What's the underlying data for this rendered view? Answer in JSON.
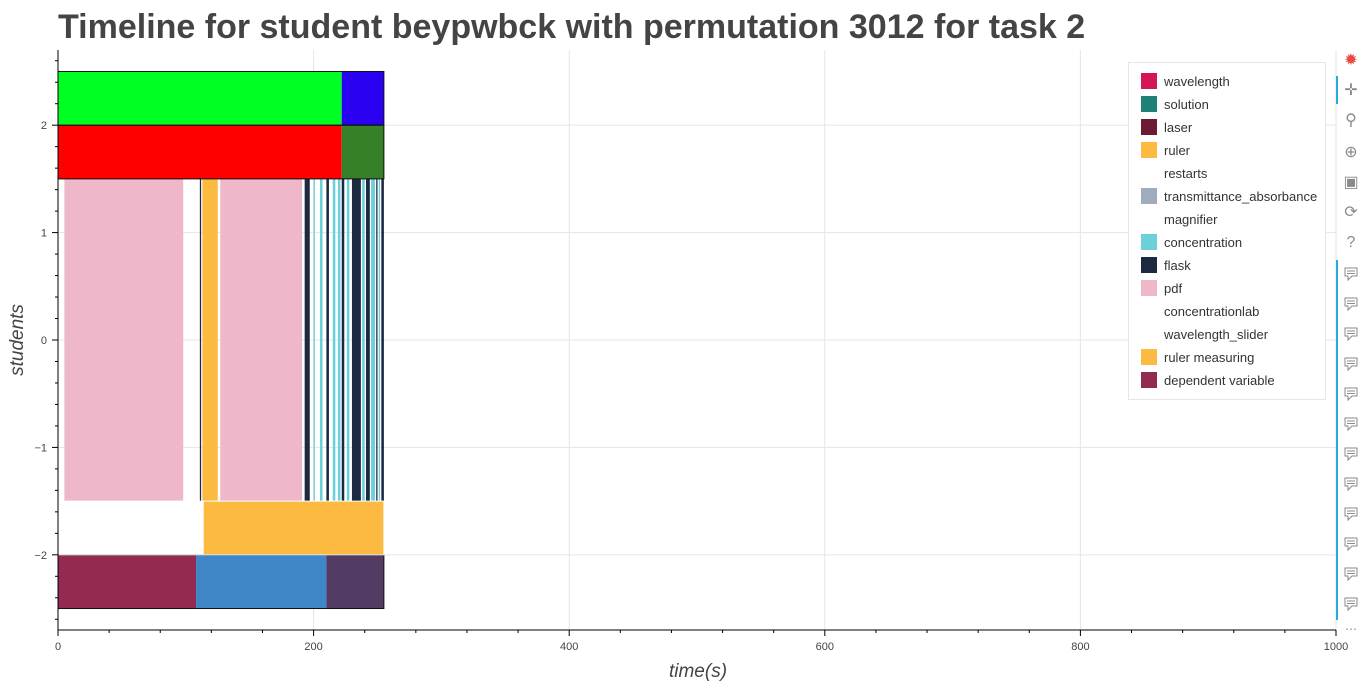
{
  "chart_data": {
    "type": "bar",
    "orientation": "horizontal-stacked-timeline",
    "title": "Timeline for student beypwbck with permutation 3012 for task 2",
    "xlabel": "time(s)",
    "ylabel": "students",
    "xlim": [
      0,
      1000
    ],
    "ylim": [
      -2.7,
      2.7
    ],
    "x_ticks": [
      0,
      200,
      400,
      600,
      800,
      1000
    ],
    "y_ticks": [
      2,
      1,
      0,
      -1,
      -2
    ],
    "y_tick_labels": [
      "2",
      "1",
      "0",
      "−1",
      "−2"
    ],
    "grid": true,
    "legend_position": "top-right",
    "segments": [
      {
        "y0": 2.0,
        "y1": 2.5,
        "x0": 0,
        "x1": 222,
        "color": "#00ff22"
      },
      {
        "y0": 2.0,
        "y1": 2.5,
        "x0": 222,
        "x1": 255,
        "color": "#2a00f0"
      },
      {
        "y0": 1.5,
        "y1": 2.0,
        "x0": 0,
        "x1": 222,
        "color": "#ff0000"
      },
      {
        "y0": 1.5,
        "y1": 2.0,
        "x0": 222,
        "x1": 255,
        "color": "#368029"
      },
      {
        "y0": -1.5,
        "y1": 1.5,
        "x0": 5,
        "x1": 98,
        "color": "#eeb8ca"
      },
      {
        "y0": -1.5,
        "y1": 1.5,
        "x0": 111,
        "x1": 112,
        "color": "#1b2a40"
      },
      {
        "y0": -1.5,
        "y1": 1.5,
        "x0": 113,
        "x1": 125,
        "color": "#fdba40"
      },
      {
        "y0": -1.5,
        "y1": 1.5,
        "x0": 127,
        "x1": 191,
        "color": "#eeb8ca"
      },
      {
        "y0": -1.5,
        "y1": 1.5,
        "x0": 193,
        "x1": 197,
        "color": "#1b2a40"
      },
      {
        "y0": -1.5,
        "y1": 1.5,
        "x0": 200,
        "x1": 201,
        "color": "#6ccfda"
      },
      {
        "y0": -1.5,
        "y1": 1.5,
        "x0": 205,
        "x1": 207,
        "color": "#6ccfda"
      },
      {
        "y0": -1.5,
        "y1": 1.5,
        "x0": 210,
        "x1": 212,
        "color": "#1b2a40"
      },
      {
        "y0": -1.5,
        "y1": 1.5,
        "x0": 215,
        "x1": 217,
        "color": "#6ccfda"
      },
      {
        "y0": -1.5,
        "y1": 1.5,
        "x0": 219,
        "x1": 221,
        "color": "#6ccfda"
      },
      {
        "y0": -1.5,
        "y1": 1.5,
        "x0": 222,
        "x1": 224,
        "color": "#1b2a40"
      },
      {
        "y0": -1.5,
        "y1": 1.5,
        "x0": 226,
        "x1": 228,
        "color": "#6ccfda"
      },
      {
        "y0": -1.5,
        "y1": 1.5,
        "x0": 230,
        "x1": 237,
        "color": "#1b2a40"
      },
      {
        "y0": -1.5,
        "y1": 1.5,
        "x0": 238,
        "x1": 240,
        "color": "#6ccfda"
      },
      {
        "y0": -1.5,
        "y1": 1.5,
        "x0": 241,
        "x1": 244,
        "color": "#1b2a40"
      },
      {
        "y0": -1.5,
        "y1": 1.5,
        "x0": 245,
        "x1": 248,
        "color": "#6ccfda"
      },
      {
        "y0": -1.5,
        "y1": 1.5,
        "x0": 249,
        "x1": 250,
        "color": "#1b2a40"
      },
      {
        "y0": -1.5,
        "y1": 1.5,
        "x0": 251,
        "x1": 252,
        "color": "#6ccfda"
      },
      {
        "y0": -1.5,
        "y1": 1.5,
        "x0": 253,
        "x1": 255,
        "color": "#1b2a40"
      },
      {
        "y0": -2.0,
        "y1": -1.5,
        "x0": 114,
        "x1": 255,
        "color": "#fdba40"
      },
      {
        "y0": -2.5,
        "y1": -2.0,
        "x0": 0,
        "x1": 108,
        "color": "#922a52"
      },
      {
        "y0": -2.5,
        "y1": -2.0,
        "x0": 108,
        "x1": 210,
        "color": "#3f87c6"
      },
      {
        "y0": -2.5,
        "y1": -2.0,
        "x0": 210,
        "x1": 255,
        "color": "#533c63"
      }
    ],
    "legend": [
      {
        "label": "wavelength",
        "color": "#d41559"
      },
      {
        "label": "solution",
        "color": "#207f78"
      },
      {
        "label": "laser",
        "color": "#6d1a33"
      },
      {
        "label": "ruler",
        "color": "#fdba40"
      },
      {
        "label": "restarts",
        "color": "#ffffff"
      },
      {
        "label": "transmittance_absorbance",
        "color": "#9eacbe"
      },
      {
        "label": "magnifier",
        "color": "#ffffff"
      },
      {
        "label": "concentration",
        "color": "#6ccfda"
      },
      {
        "label": "flask",
        "color": "#1b2a40"
      },
      {
        "label": "pdf",
        "color": "#eeb8ca"
      },
      {
        "label": "concentrationlab",
        "color": "#ffffff"
      },
      {
        "label": "wavelength_slider",
        "color": "#ffffff"
      },
      {
        "label": "ruler measuring",
        "color": "#fdba40"
      },
      {
        "label": "dependent variable",
        "color": "#922a52"
      }
    ]
  },
  "toolbar": {
    "tools": [
      {
        "name": "bokeh-logo-icon",
        "glyph": "✹"
      },
      {
        "name": "pan-tool-icon",
        "glyph": "✛"
      },
      {
        "name": "box-zoom-tool-icon",
        "glyph": "⚲"
      },
      {
        "name": "wheel-zoom-tool-icon",
        "glyph": "⊕"
      },
      {
        "name": "save-tool-icon",
        "glyph": "▣"
      },
      {
        "name": "reset-tool-icon",
        "glyph": "⟳"
      },
      {
        "name": "help-tool-icon",
        "glyph": "?"
      }
    ],
    "hover_tool_count": 12,
    "more_label": "⋯"
  }
}
